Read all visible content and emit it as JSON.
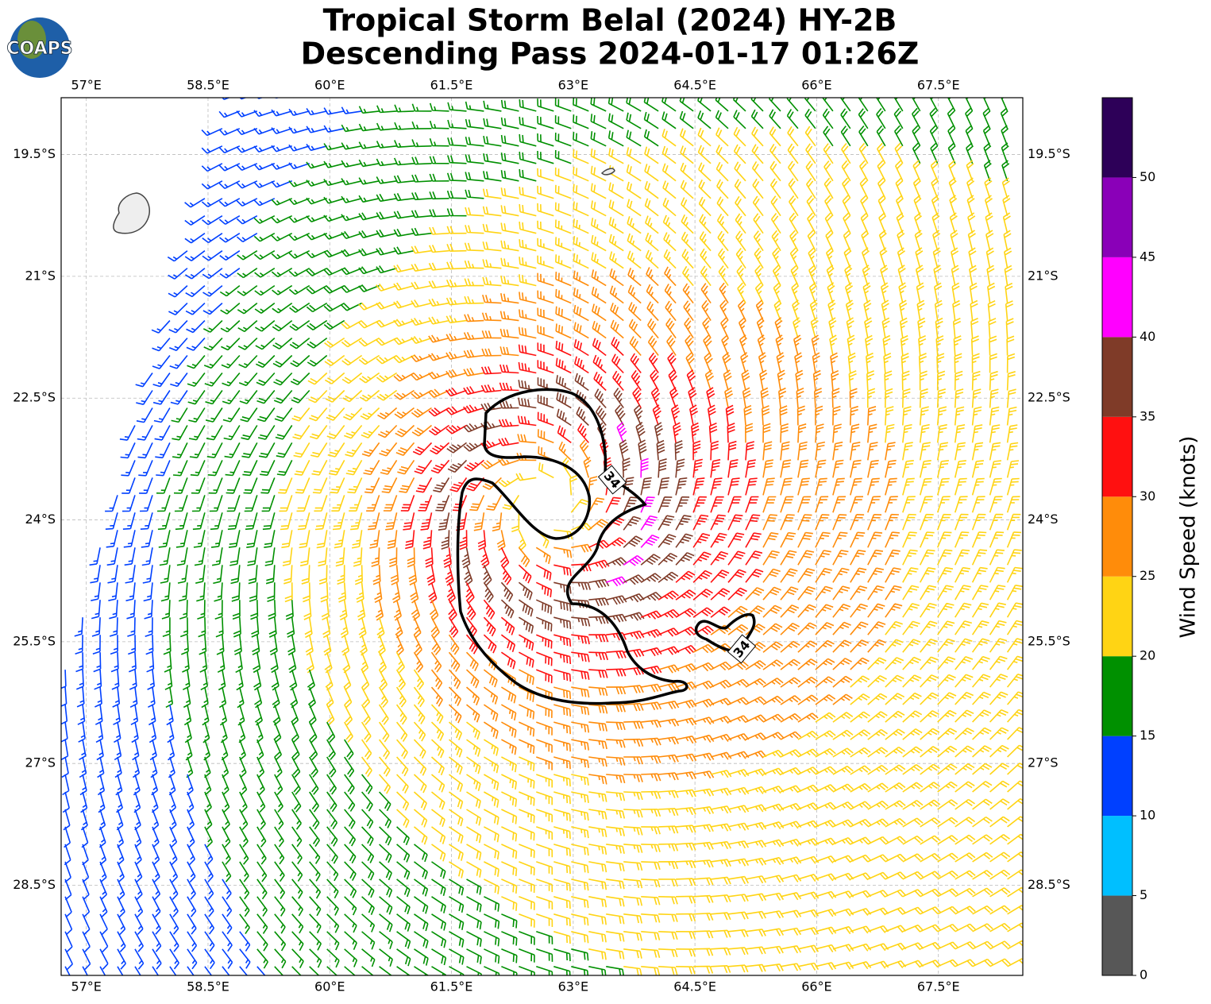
{
  "chart_data": {
    "type": "wind-barbs",
    "title": "Tropical Storm Belal (2024) HY-2B",
    "subtitle": "Descending Pass 2024-01-17 01:26Z",
    "logo": "COAPS",
    "xlim": [
      56.69,
      68.54
    ],
    "ylim": [
      -29.61,
      -18.8
    ],
    "xticks": [
      {
        "value": 57,
        "label": "57°E"
      },
      {
        "value": 58.5,
        "label": "58.5°E"
      },
      {
        "value": 60,
        "label": "60°E"
      },
      {
        "value": 61.5,
        "label": "61.5°E"
      },
      {
        "value": 63,
        "label": "63°E"
      },
      {
        "value": 64.5,
        "label": "64.5°E"
      },
      {
        "value": 66,
        "label": "66°E"
      },
      {
        "value": 67.5,
        "label": "67.5°E"
      }
    ],
    "yticks": [
      {
        "value": -19.5,
        "label": "19.5°S"
      },
      {
        "value": -21,
        "label": "21°S"
      },
      {
        "value": -22.5,
        "label": "22.5°S"
      },
      {
        "value": -24,
        "label": "24°S"
      },
      {
        "value": -25.5,
        "label": "25.5°S"
      },
      {
        "value": -27,
        "label": "27°S"
      },
      {
        "value": -28.5,
        "label": "28.5°S"
      }
    ],
    "grid": true,
    "contour_level": 34,
    "colorbar": {
      "label": "Wind Speed (knots)",
      "clim": [
        0,
        55
      ],
      "ticks": [
        0,
        5,
        10,
        15,
        20,
        25,
        30,
        35,
        40,
        45,
        50
      ],
      "colors": [
        "#575757",
        "#00bfff",
        "#0040ff",
        "#009000",
        "#ffd414",
        "#ff8c0a",
        "#ff1010",
        "#7f3b28",
        "#ff00ff",
        "#8a00b8",
        "#2d0058"
      ]
    }
  }
}
